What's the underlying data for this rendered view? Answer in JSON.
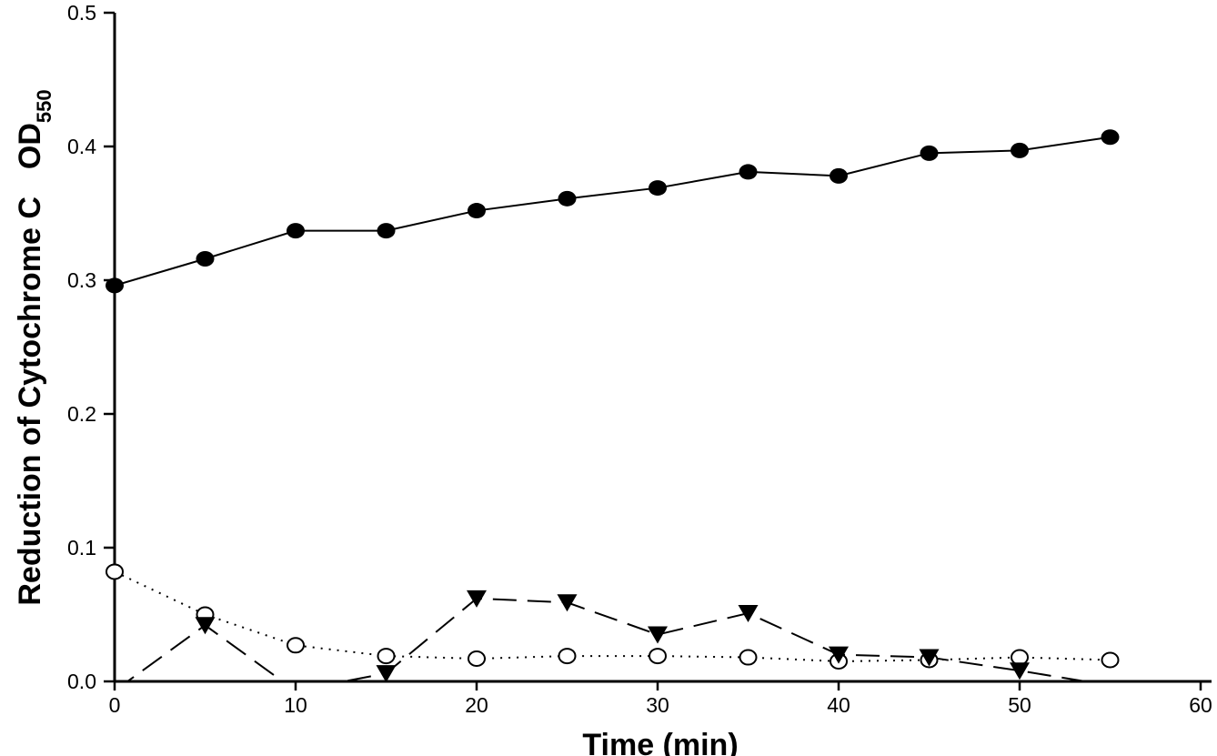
{
  "chart_data": {
    "type": "line",
    "title": "",
    "xlabel": "Time (min)",
    "ylabel": "Reduction of Cytochrome C",
    "ylabel_suffix": "OD",
    "ylabel_subscript": "550",
    "xlim": [
      0,
      60
    ],
    "ylim": [
      0,
      0.5
    ],
    "xticks": [
      "0",
      "10",
      "20",
      "30",
      "40",
      "50",
      "60"
    ],
    "yticks": [
      "0.0",
      "0.1",
      "0.2",
      "0.3",
      "0.4",
      "0.5"
    ],
    "grid": false,
    "x": [
      0,
      5,
      10,
      15,
      20,
      25,
      30,
      35,
      40,
      45,
      50,
      55
    ],
    "series": [
      {
        "marker": "filled-circle",
        "line": "solid",
        "values": [
          0.296,
          0.316,
          0.337,
          0.337,
          0.352,
          0.361,
          0.369,
          0.381,
          0.378,
          0.395,
          0.397,
          0.407
        ]
      },
      {
        "marker": "open-circle",
        "line": "dotted",
        "values": [
          0.082,
          0.05,
          0.027,
          0.019,
          0.017,
          0.019,
          0.019,
          0.018,
          0.015,
          0.016,
          0.018,
          0.016
        ]
      },
      {
        "marker": "filled-triangle-down",
        "line": "dashed",
        "values": [
          -0.007,
          0.042,
          -0.007,
          0.006,
          0.062,
          0.059,
          0.035,
          0.051,
          0.02,
          0.018,
          0.008,
          -0.003
        ]
      }
    ]
  }
}
